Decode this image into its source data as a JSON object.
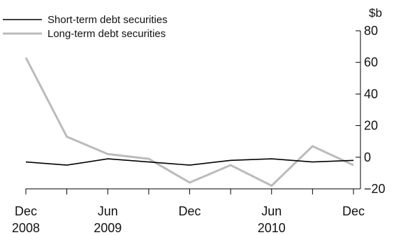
{
  "chart_data": {
    "type": "line",
    "title": "",
    "xlabel": "",
    "ylabel": "$b",
    "ylim": [
      -20,
      80
    ],
    "yticks": [
      "80",
      "60",
      "40",
      "20",
      "0",
      "−20"
    ],
    "xtick_labels": [
      {
        "month": "Dec",
        "year": "2008"
      },
      {
        "month": "Jun",
        "year": "2009"
      },
      {
        "month": "Dec",
        "year": ""
      },
      {
        "month": "Jun",
        "year": "2010"
      },
      {
        "month": "Dec",
        "year": ""
      }
    ],
    "x": [
      "Dec 2008",
      "Mar 2009",
      "Jun 2009",
      "Sep 2009",
      "Dec 2009",
      "Mar 2010",
      "Jun 2010",
      "Sep 2010",
      "Dec 2010"
    ],
    "series": [
      {
        "name": "Short-term debt securities",
        "color": "#000000",
        "values": [
          -3,
          -5,
          -1,
          -3,
          -5,
          -2,
          -1,
          -3,
          -2
        ]
      },
      {
        "name": "Long-term debt securities",
        "color": "#bbbbbb",
        "values": [
          63,
          13,
          2,
          -1,
          -16,
          -5,
          -18,
          7,
          -5
        ]
      }
    ],
    "legend": "top-left",
    "grid": false
  }
}
